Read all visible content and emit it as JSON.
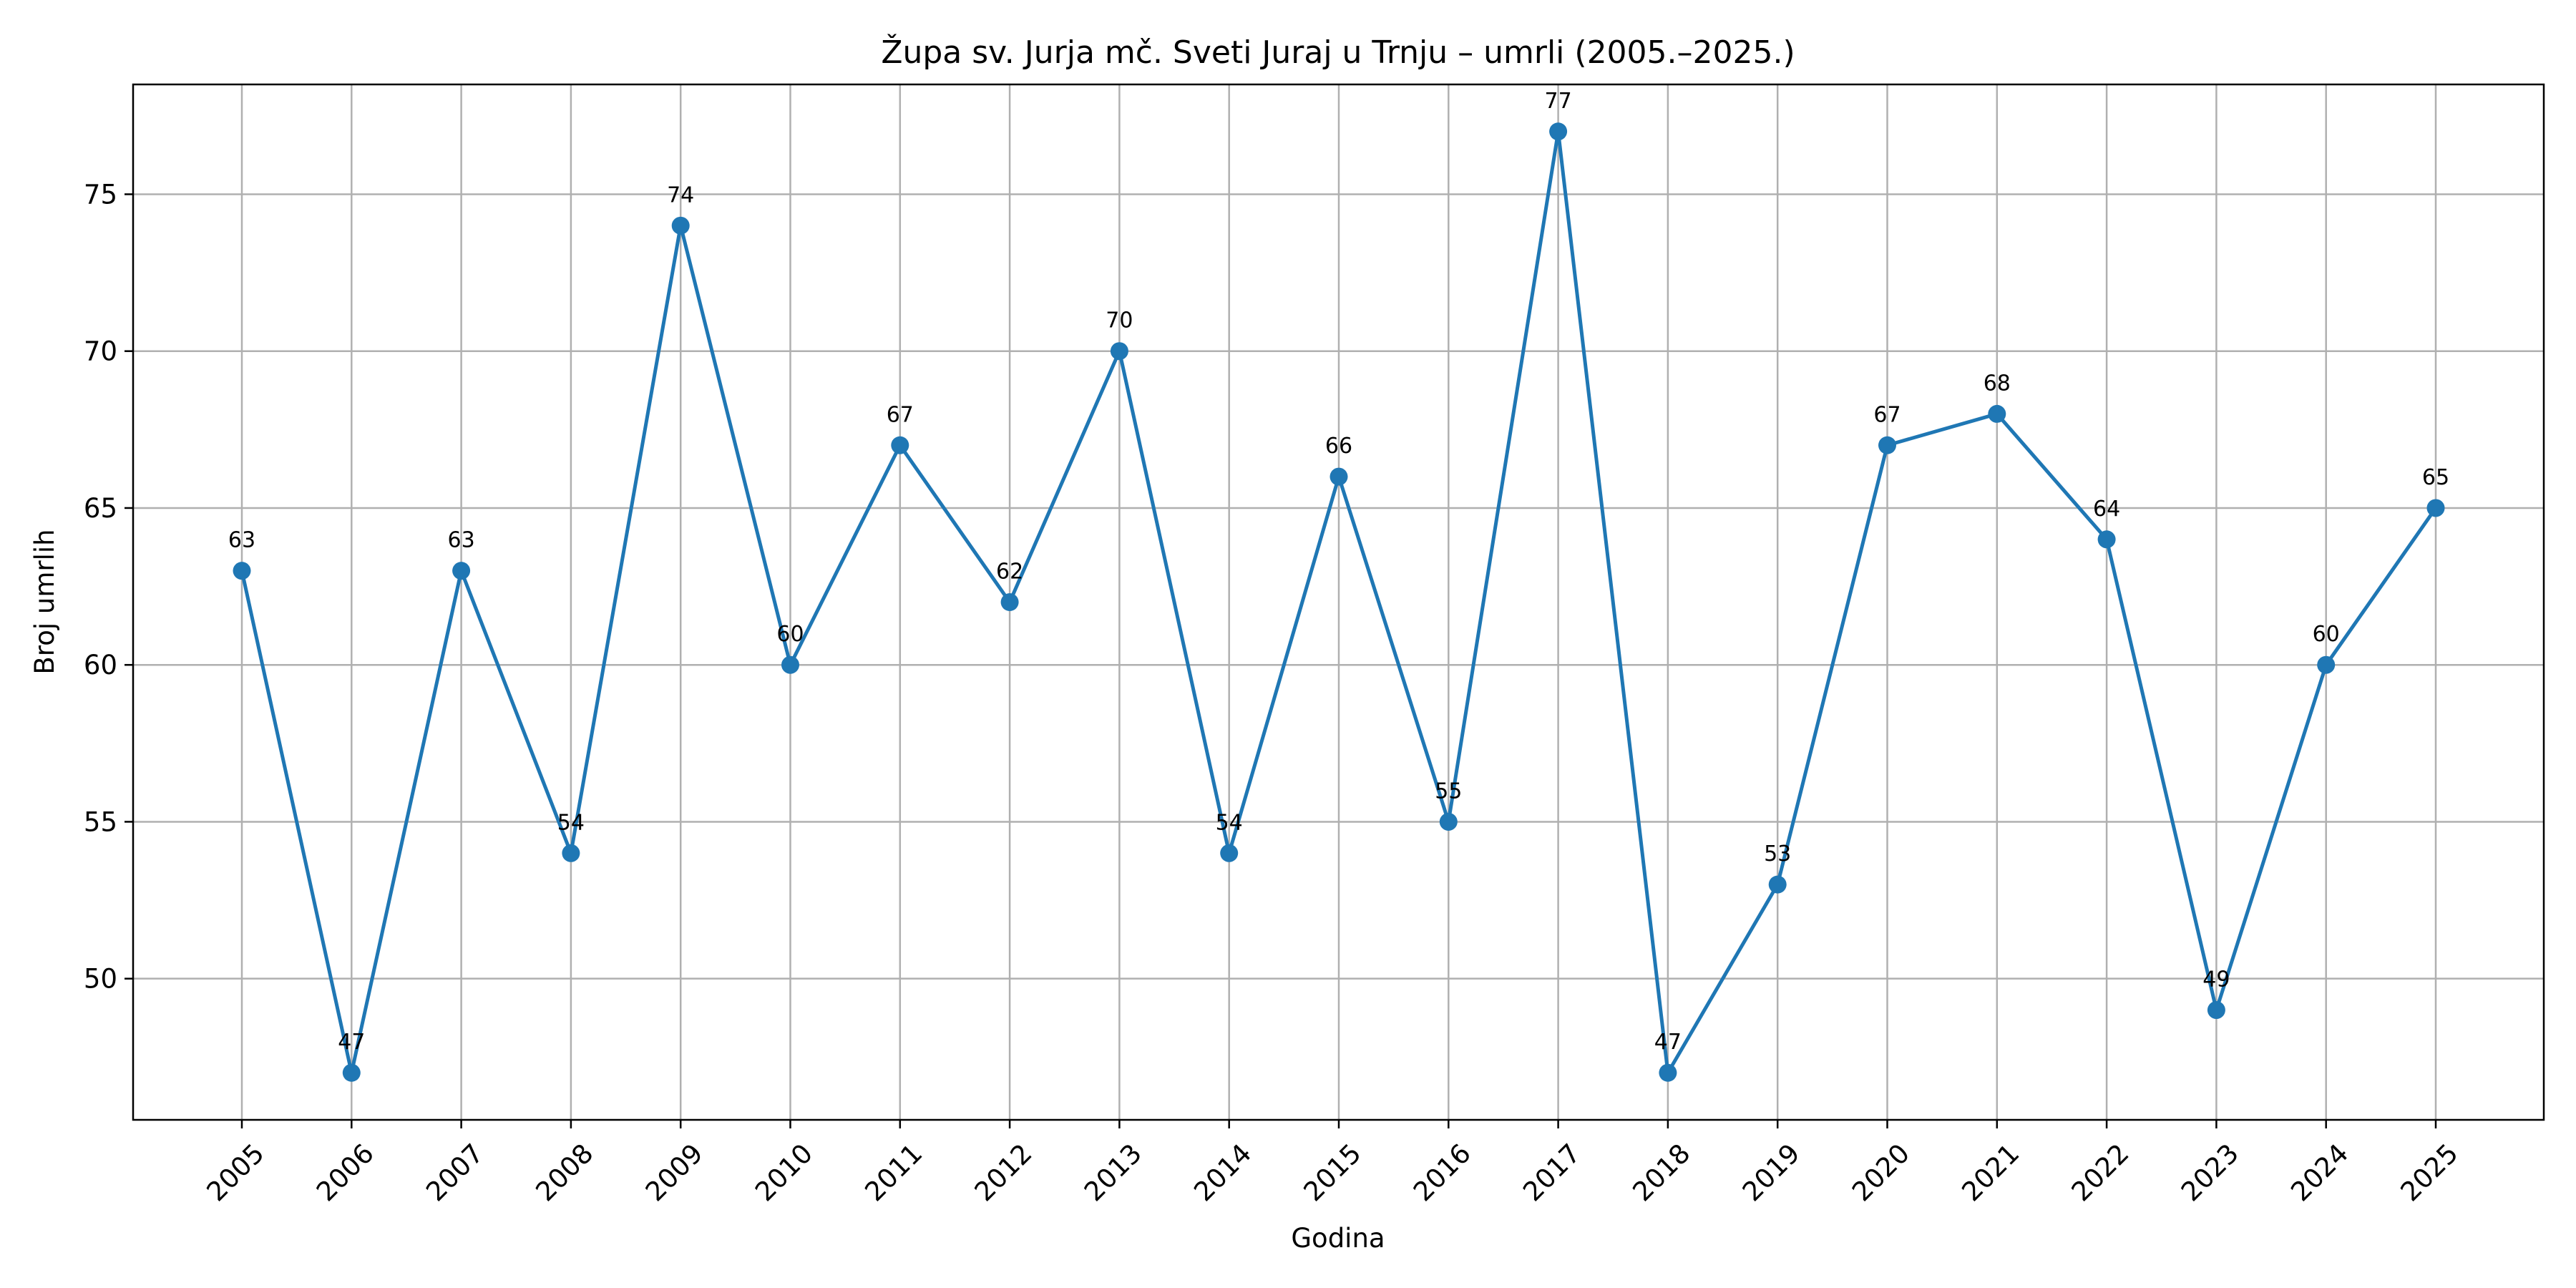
{
  "chart_data": {
    "type": "line",
    "title": "Župa sv. Jurja mč. Sveti Juraj u Trnju – umrli (2005.–2025.)",
    "xlabel": "Godina",
    "ylabel": "Broj umrlih",
    "categories": [
      "2005",
      "2006",
      "2007",
      "2008",
      "2009",
      "2010",
      "2011",
      "2012",
      "2013",
      "2014",
      "2015",
      "2016",
      "2017",
      "2018",
      "2019",
      "2020",
      "2021",
      "2022",
      "2023",
      "2024",
      "2025"
    ],
    "series": [
      {
        "values": [
          63,
          47,
          63,
          54,
          74,
          60,
          67,
          62,
          70,
          54,
          66,
          55,
          77,
          47,
          53,
          67,
          68,
          64,
          49,
          60,
          65
        ],
        "color": "#1f77b4",
        "marker": "circle"
      }
    ],
    "data_labels": [
      "63",
      "47",
      "63",
      "54",
      "74",
      "60",
      "67",
      "62",
      "70",
      "54",
      "66",
      "55",
      "77",
      "47",
      "53",
      "67",
      "68",
      "64",
      "49",
      "60",
      "65"
    ],
    "yticks": [
      50,
      55,
      60,
      65,
      70,
      75
    ],
    "ytick_labels": [
      "50",
      "55",
      "60",
      "65",
      "70",
      "75"
    ],
    "ylim": [
      45.5,
      78.5
    ],
    "grid": true,
    "xtick_rotation_deg": 45,
    "colors": {
      "line": "#1f77b4",
      "grid": "#b0b0b0",
      "axes": "#000000"
    }
  }
}
